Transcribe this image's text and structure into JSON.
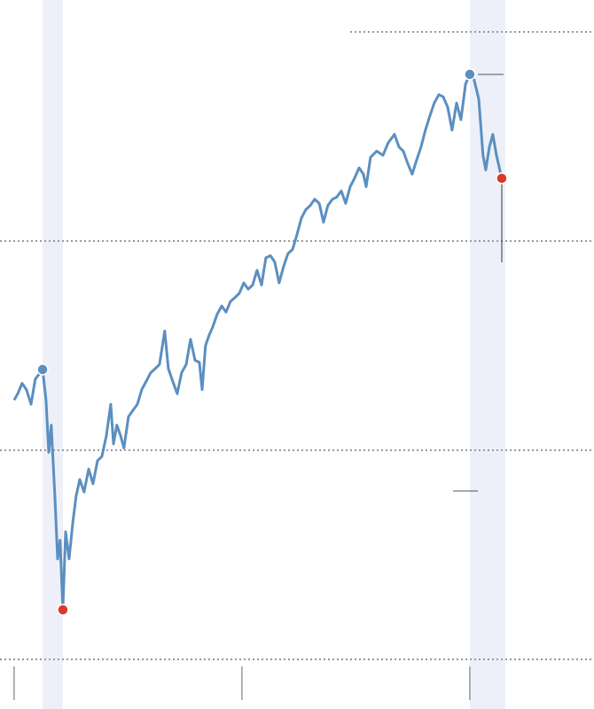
{
  "chart_data": {
    "type": "line",
    "x": [
      2020.0,
      2020.016,
      2020.035,
      2020.054,
      2020.074,
      2020.093,
      2020.125,
      2020.14,
      2020.152,
      2020.163,
      2020.179,
      2020.191,
      2020.202,
      2020.214,
      2020.226,
      2020.241,
      2020.257,
      2020.272,
      2020.288,
      2020.307,
      2020.327,
      2020.346,
      2020.366,
      2020.385,
      2020.405,
      2020.424,
      2020.436,
      2020.451,
      2020.467,
      2020.482,
      2020.502,
      2020.521,
      2020.541,
      2020.56,
      2020.58,
      2020.599,
      2020.619,
      2020.638,
      2020.661,
      2020.677,
      2020.696,
      2020.716,
      2020.735,
      2020.755,
      2020.774,
      2020.794,
      2020.813,
      2020.825,
      2020.84,
      2020.856,
      2020.872,
      2020.891,
      2020.911,
      2020.93,
      2020.949,
      2020.969,
      2020.988,
      2021.008,
      2021.027,
      2021.047,
      2021.066,
      2021.086,
      2021.105,
      2021.125,
      2021.144,
      2021.163,
      2021.183,
      2021.202,
      2021.222,
      2021.241,
      2021.261,
      2021.28,
      2021.3,
      2021.319,
      2021.339,
      2021.358,
      2021.377,
      2021.397,
      2021.416,
      2021.436,
      2021.455,
      2021.475,
      2021.494,
      2021.514,
      2021.533,
      2021.545,
      2021.564,
      2021.591,
      2021.619,
      2021.642,
      2021.669,
      2021.689,
      2021.708,
      2021.728,
      2021.747,
      2021.767,
      2021.786,
      2021.805,
      2021.825,
      2021.844,
      2021.864,
      2021.883,
      2021.903,
      2021.922,
      2021.942,
      2021.961,
      2021.981,
      2022.0,
      2022.019,
      2022.039,
      2022.058,
      2022.07,
      2022.086,
      2022.101,
      2022.117,
      2022.14
    ],
    "series": [
      {
        "color": "#5b8fc0",
        "values": [
          3240,
          3270,
          3320,
          3290,
          3220,
          3340,
          3386,
          3240,
          2990,
          3120,
          2780,
          2480,
          2570,
          2237,
          2610,
          2480,
          2650,
          2780,
          2860,
          2800,
          2910,
          2840,
          2950,
          2970,
          3070,
          3220,
          3030,
          3120,
          3070,
          3010,
          3160,
          3190,
          3220,
          3290,
          3330,
          3370,
          3390,
          3410,
          3570,
          3390,
          3330,
          3270,
          3370,
          3410,
          3530,
          3430,
          3420,
          3290,
          3500,
          3550,
          3590,
          3650,
          3690,
          3660,
          3710,
          3730,
          3750,
          3800,
          3770,
          3790,
          3860,
          3790,
          3920,
          3930,
          3900,
          3800,
          3880,
          3940,
          3960,
          4030,
          4110,
          4150,
          4170,
          4200,
          4180,
          4090,
          4170,
          4200,
          4210,
          4240,
          4180,
          4260,
          4300,
          4350,
          4320,
          4260,
          4400,
          4430,
          4410,
          4470,
          4510,
          4450,
          4430,
          4370,
          4320,
          4390,
          4450,
          4530,
          4600,
          4660,
          4700,
          4690,
          4640,
          4530,
          4660,
          4580,
          4750,
          4797,
          4770,
          4680,
          4410,
          4340,
          4450,
          4510,
          4410,
          4300
        ]
      }
    ],
    "markers": [
      {
        "index": 6,
        "color": "#5b8fc0"
      },
      {
        "index": 13,
        "color": "#d93a26"
      },
      {
        "index": 107,
        "color": "#5b8fc0"
      },
      {
        "index": 115,
        "color": "#d93a26"
      }
    ],
    "shaded_ranges": [
      [
        2020.125,
        2020.214
      ],
      [
        2022.0,
        2022.156
      ]
    ],
    "shade_color": "#edf0f8",
    "xlim": [
      2019.938,
      2022.545
    ],
    "xticks": [
      2020,
      2021,
      2022
    ],
    "ylim": [
      2000,
      5000
    ],
    "yticks": [
      2000,
      3000,
      4000,
      5000
    ],
    "grid": true
  }
}
